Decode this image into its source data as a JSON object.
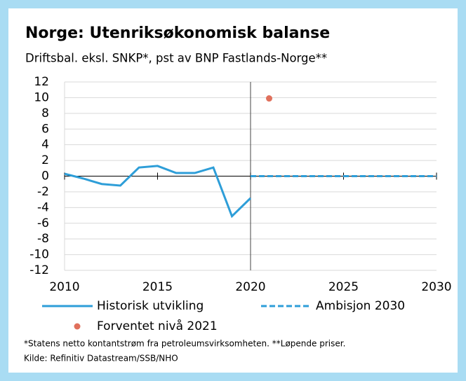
{
  "chart_data": {
    "type": "line",
    "title": "Norge: Utenriksøkonomisk balanse",
    "subtitle": "Driftsbal. eksl. SNKP*, pst av BNP Fastlands-Norge**",
    "xlim": [
      2010,
      2030
    ],
    "xticks": [
      2010,
      2015,
      2020,
      2025,
      2030
    ],
    "ylim": [
      -12,
      12
    ],
    "yticks": [
      -12,
      -10,
      -8,
      -6,
      -4,
      -2,
      0,
      2,
      4,
      6,
      8,
      10,
      12
    ],
    "grid": true,
    "vline": 2020,
    "series": [
      {
        "name": "Historisk utvikling",
        "color": "#2e9ed8",
        "style": "solid",
        "x": [
          2010,
          2011,
          2012,
          2013,
          2014,
          2015,
          2016,
          2017,
          2018,
          2019,
          2020
        ],
        "values": [
          0.3,
          -0.3,
          -1.0,
          -1.2,
          1.1,
          1.3,
          0.4,
          0.4,
          1.1,
          -5.1,
          -2.8
        ]
      },
      {
        "name": "Ambisjon 2030",
        "color": "#2e9ed8",
        "style": "dashed",
        "x": [
          2020,
          2030
        ],
        "values": [
          0,
          0
        ]
      },
      {
        "name": "Forventet nivå 2021",
        "color": "#e0705c",
        "style": "marker",
        "x": [
          2021
        ],
        "values": [
          9.9
        ]
      }
    ],
    "notes": [
      "*Statens netto kontantstrøm fra petroleumsvirksomheten. **Løpende priser.",
      "Kilde: Refinitiv Datastream/SSB/NHO"
    ]
  }
}
